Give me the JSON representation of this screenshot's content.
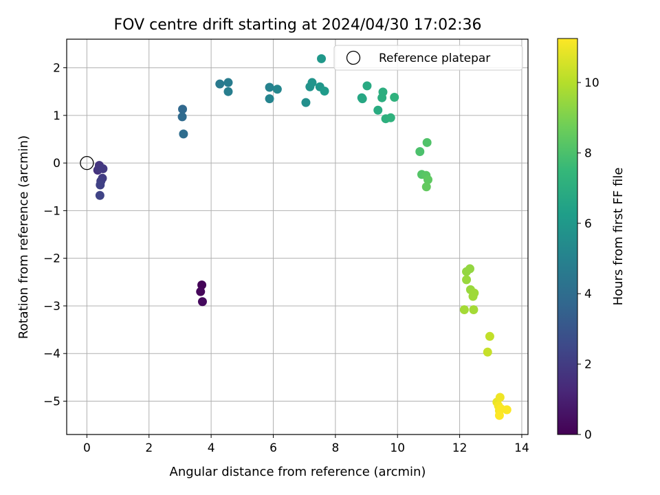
{
  "chart_data": {
    "type": "scatter",
    "title": "FOV centre drift starting at 2024/04/30 17:02:36",
    "xlabel": "Angular distance from reference (arcmin)",
    "ylabel": "Rotation from reference (arcmin)",
    "xlim": [
      -0.65,
      14.2
    ],
    "ylim": [
      -5.7,
      2.6
    ],
    "xticks": [
      "0",
      "2",
      "4",
      "6",
      "8",
      "10",
      "12",
      "14"
    ],
    "yticks": [
      "−5",
      "−4",
      "−3",
      "−2",
      "−1",
      "0",
      "1",
      "2"
    ],
    "grid": true,
    "legend": {
      "entries": [
        "Reference platepar"
      ],
      "placement": "top-right"
    },
    "reference_point": {
      "x": 0,
      "y": 0
    },
    "colorbar": {
      "label": "Hours from first FF file",
      "range": [
        0,
        11.25
      ],
      "ticks": [
        "0",
        "2",
        "4",
        "6",
        "8",
        "10"
      ],
      "colormap": [
        "#440154",
        "#482878",
        "#3e4989",
        "#31688e",
        "#26828e",
        "#1f9e89",
        "#35b779",
        "#6ece58",
        "#b5de2b",
        "#fde725"
      ]
    },
    "points": [
      {
        "x": 3.7,
        "y": -2.56,
        "c": 0.1
      },
      {
        "x": 3.66,
        "y": -2.7,
        "c": 0.2
      },
      {
        "x": 3.72,
        "y": -2.91,
        "c": 0.3
      },
      {
        "x": 0.35,
        "y": -0.15,
        "c": 1.6
      },
      {
        "x": 0.4,
        "y": -0.05,
        "c": 1.7
      },
      {
        "x": 0.38,
        "y": -0.12,
        "c": 1.8
      },
      {
        "x": 0.52,
        "y": -0.12,
        "c": 1.9
      },
      {
        "x": 0.5,
        "y": -0.32,
        "c": 2.0
      },
      {
        "x": 0.45,
        "y": -0.38,
        "c": 2.1
      },
      {
        "x": 0.43,
        "y": -0.46,
        "c": 2.2
      },
      {
        "x": 0.42,
        "y": -0.68,
        "c": 2.3
      },
      {
        "x": 3.08,
        "y": 1.13,
        "c": 3.8
      },
      {
        "x": 3.07,
        "y": 0.97,
        "c": 3.9
      },
      {
        "x": 3.11,
        "y": 0.61,
        "c": 4.0
      },
      {
        "x": 4.28,
        "y": 1.66,
        "c": 4.6
      },
      {
        "x": 4.55,
        "y": 1.69,
        "c": 4.7
      },
      {
        "x": 4.55,
        "y": 1.5,
        "c": 4.8
      },
      {
        "x": 5.88,
        "y": 1.59,
        "c": 5.0
      },
      {
        "x": 5.88,
        "y": 1.35,
        "c": 5.1
      },
      {
        "x": 6.13,
        "y": 1.55,
        "c": 5.2
      },
      {
        "x": 7.05,
        "y": 1.27,
        "c": 5.6
      },
      {
        "x": 7.18,
        "y": 1.6,
        "c": 5.7
      },
      {
        "x": 7.25,
        "y": 1.69,
        "c": 5.8
      },
      {
        "x": 7.5,
        "y": 1.6,
        "c": 5.9
      },
      {
        "x": 7.55,
        "y": 2.19,
        "c": 6.0
      },
      {
        "x": 7.65,
        "y": 1.51,
        "c": 6.1
      },
      {
        "x": 8.85,
        "y": 1.37,
        "c": 6.6
      },
      {
        "x": 8.87,
        "y": 1.35,
        "c": 6.7
      },
      {
        "x": 9.02,
        "y": 1.62,
        "c": 6.8
      },
      {
        "x": 9.37,
        "y": 1.11,
        "c": 6.9
      },
      {
        "x": 9.5,
        "y": 1.37,
        "c": 7.0
      },
      {
        "x": 9.53,
        "y": 1.49,
        "c": 7.0
      },
      {
        "x": 9.62,
        "y": 0.93,
        "c": 7.1
      },
      {
        "x": 9.78,
        "y": 0.95,
        "c": 7.2
      },
      {
        "x": 9.9,
        "y": 1.38,
        "c": 7.2
      },
      {
        "x": 10.72,
        "y": 0.24,
        "c": 8.0
      },
      {
        "x": 10.95,
        "y": 0.43,
        "c": 8.1
      },
      {
        "x": 10.78,
        "y": -0.24,
        "c": 8.2
      },
      {
        "x": 10.92,
        "y": -0.26,
        "c": 8.3
      },
      {
        "x": 10.98,
        "y": -0.35,
        "c": 8.4
      },
      {
        "x": 10.93,
        "y": -0.5,
        "c": 8.5
      },
      {
        "x": 12.22,
        "y": -2.28,
        "c": 9.4
      },
      {
        "x": 12.33,
        "y": -2.22,
        "c": 9.4
      },
      {
        "x": 12.22,
        "y": -2.45,
        "c": 9.5
      },
      {
        "x": 12.35,
        "y": -2.66,
        "c": 9.5
      },
      {
        "x": 12.47,
        "y": -2.73,
        "c": 9.6
      },
      {
        "x": 12.43,
        "y": -2.8,
        "c": 9.6
      },
      {
        "x": 12.15,
        "y": -3.08,
        "c": 9.7
      },
      {
        "x": 12.45,
        "y": -3.08,
        "c": 9.7
      },
      {
        "x": 12.97,
        "y": -3.64,
        "c": 10.2
      },
      {
        "x": 12.9,
        "y": -3.97,
        "c": 10.3
      },
      {
        "x": 13.2,
        "y": -5.02,
        "c": 10.9
      },
      {
        "x": 13.3,
        "y": -4.92,
        "c": 11.0
      },
      {
        "x": 13.25,
        "y": -5.1,
        "c": 11.1
      },
      {
        "x": 13.28,
        "y": -5.2,
        "c": 11.1
      },
      {
        "x": 13.33,
        "y": -5.16,
        "c": 11.2
      },
      {
        "x": 13.52,
        "y": -5.18,
        "c": 11.2
      },
      {
        "x": 13.28,
        "y": -5.3,
        "c": 11.25
      }
    ]
  }
}
